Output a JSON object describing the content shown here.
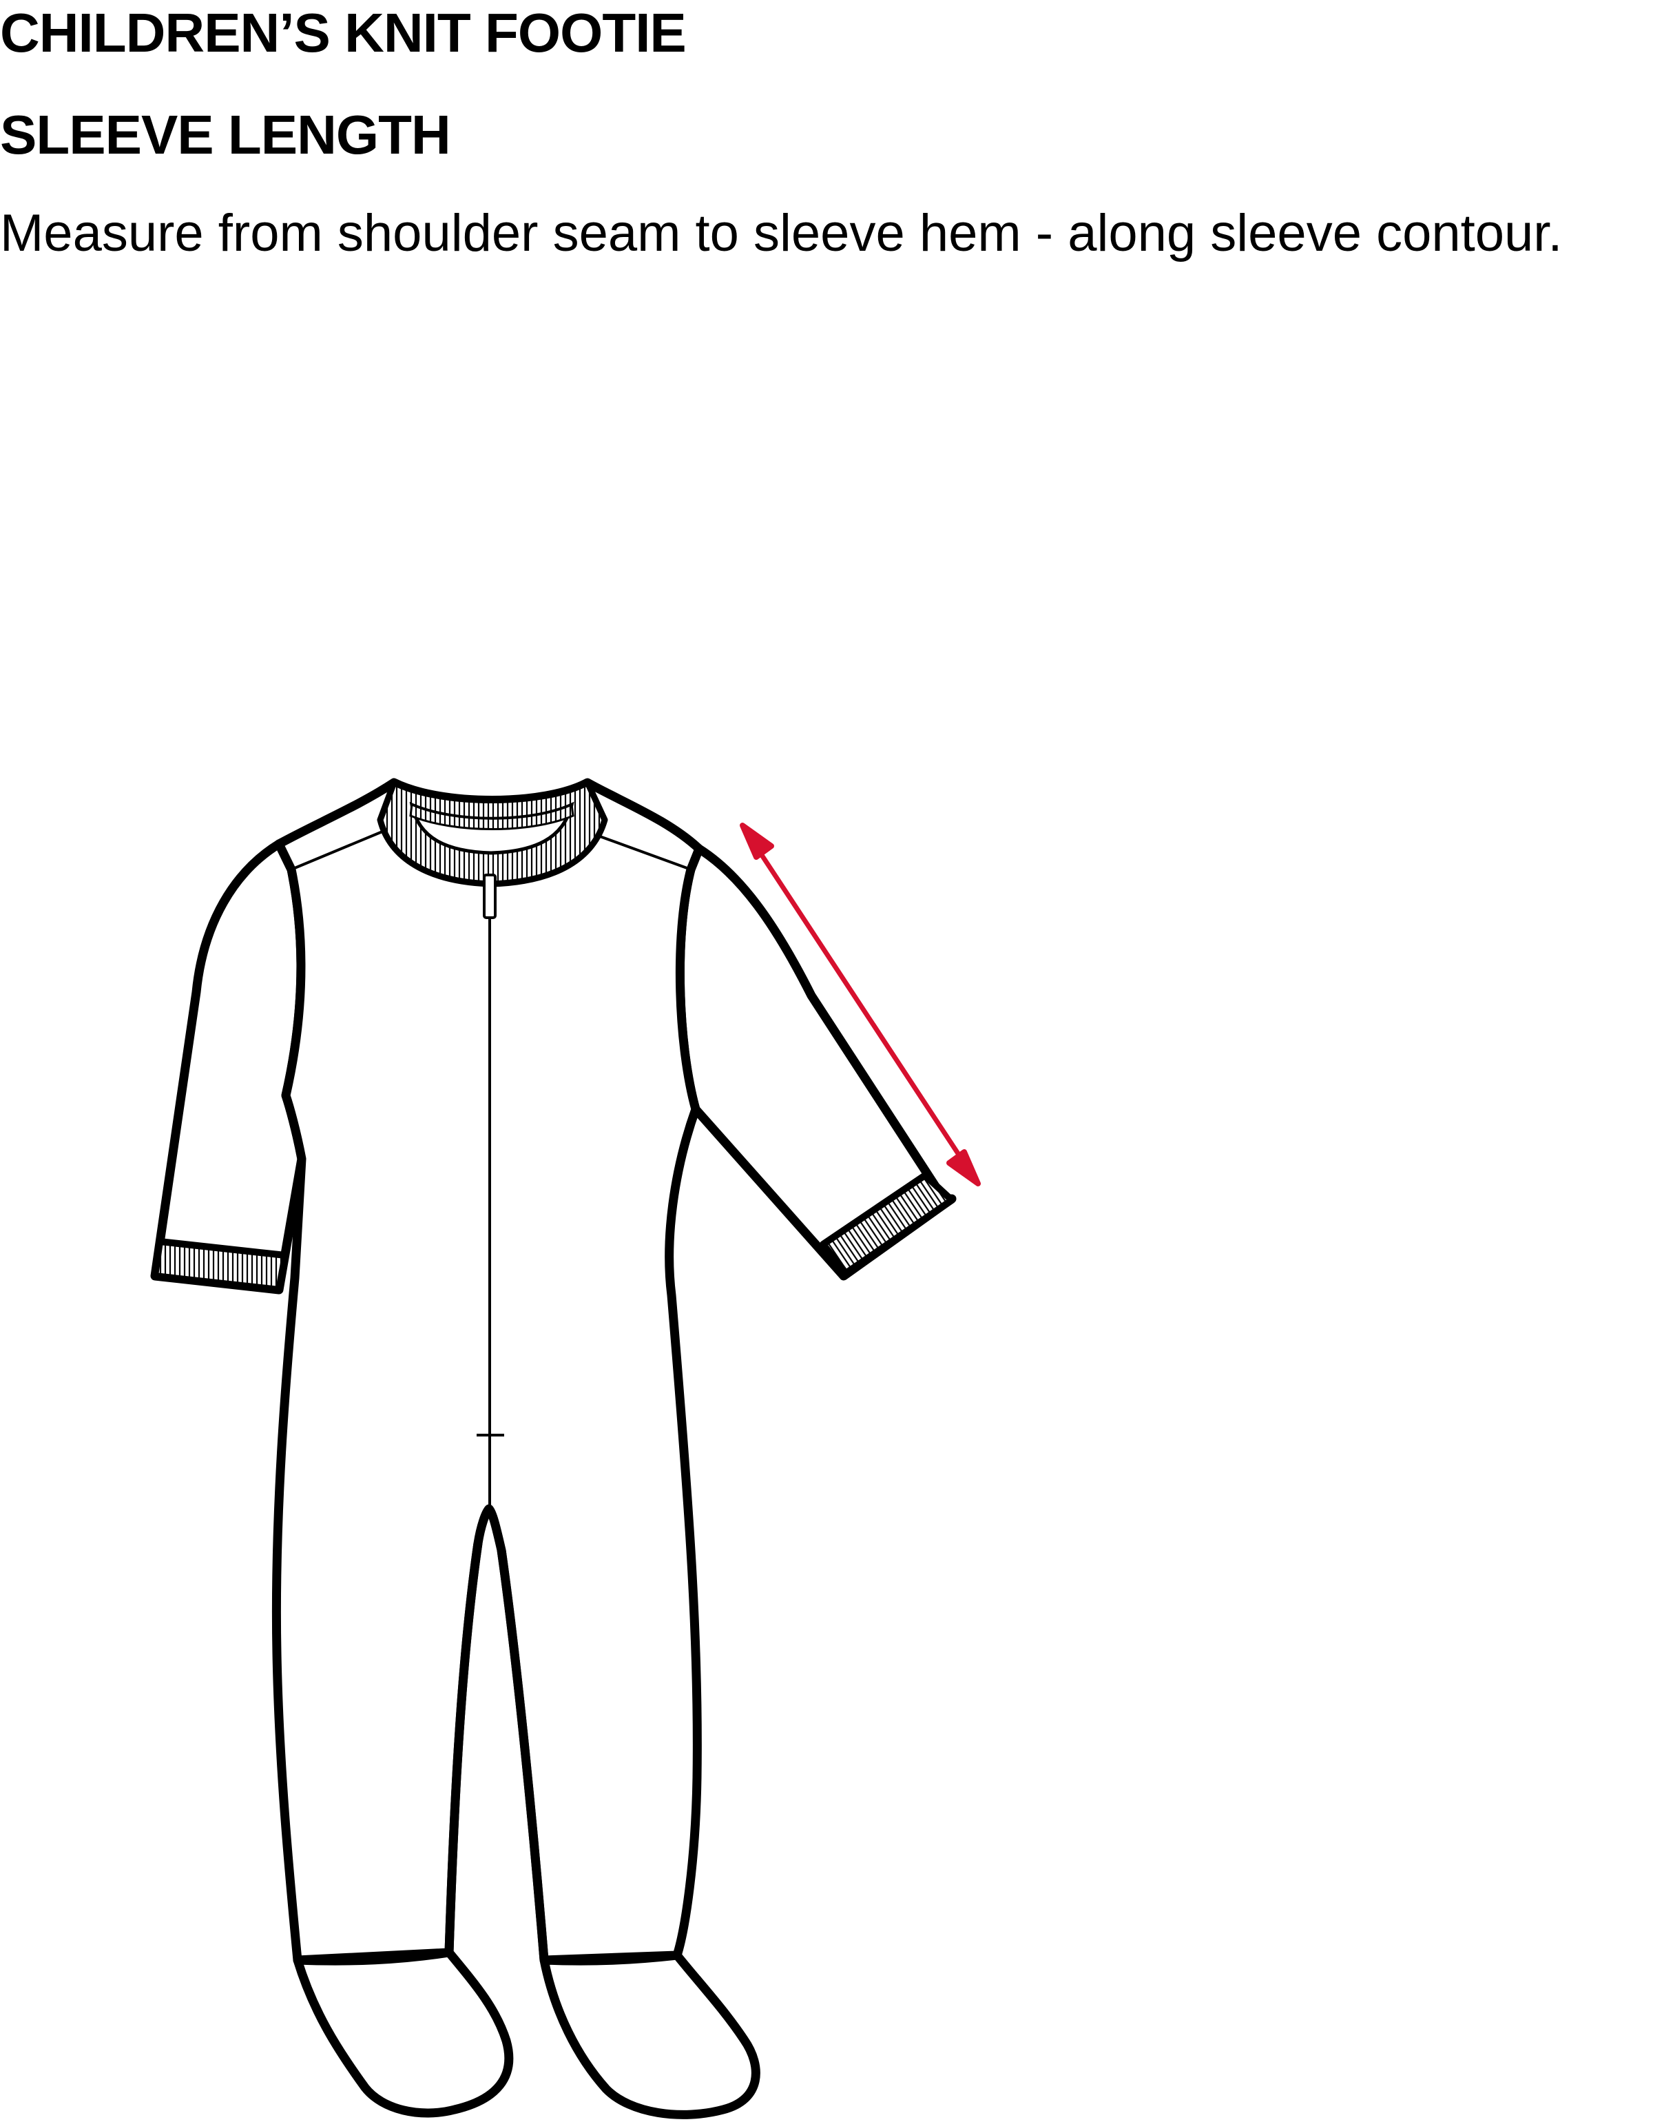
{
  "header": {
    "title": "CHILDREN’S KNIT FOOTIE",
    "subtitle": "SLEEVE LENGTH",
    "instructions": "Measure from shoulder seam to sleeve hem - along sleeve contour."
  },
  "diagram": {
    "garment_icon": "footie-garment-outline",
    "measure_icon": "double-headed-arrow",
    "colors": {
      "outline": "#000000",
      "fill": "#ffffff",
      "arrow": "#d6102e"
    }
  }
}
